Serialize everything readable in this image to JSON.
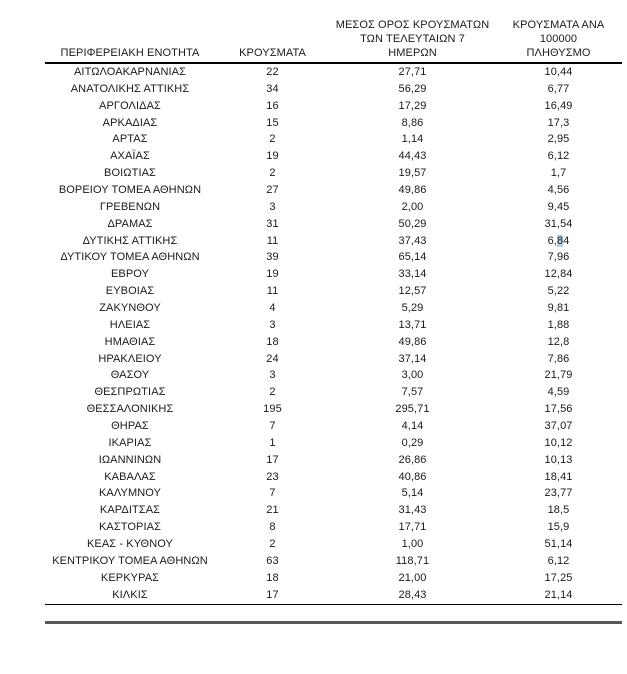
{
  "page": {
    "background": "#ffffff"
  },
  "table": {
    "columns": [
      {
        "id": "region",
        "lines": [
          "ΠΕΡΙΦΕΡΕΙΑΚΗ ΕΝΟΤΗΤΑ"
        ]
      },
      {
        "id": "cases",
        "lines": [
          "ΚΡΟΥΣΜΑΤΑ"
        ]
      },
      {
        "id": "avg7",
        "lines": [
          "ΜΕΣΟΣ ΟΡΟΣ ΚΡΟΥΣΜΑΤΩΝ",
          "ΤΩΝ ΤΕΛΕΥΤΑΙΩΝ 7",
          "ΗΜΕΡΩΝ"
        ]
      },
      {
        "id": "per100k",
        "lines": [
          "ΚΡΟΥΣΜΑΤΑ ΑΝΑ 100000",
          "ΠΛΗΘΥΣΜΟ"
        ]
      }
    ],
    "rows": [
      {
        "region": "ΑΙΤΩΛΟΑΚΑΡΝΑΝΙΑΣ",
        "cases": "22",
        "avg7": "27,71",
        "per100k": "10,44"
      },
      {
        "region": "ΑΝΑΤΟΛΙΚΗΣ ΑΤΤΙΚΗΣ",
        "cases": "34",
        "avg7": "56,29",
        "per100k": "6,77"
      },
      {
        "region": "ΑΡΓΟΛΙΔΑΣ",
        "cases": "16",
        "avg7": "17,29",
        "per100k": "16,49"
      },
      {
        "region": "ΑΡΚΑΔΙΑΣ",
        "cases": "15",
        "avg7": "8,86",
        "per100k": "17,3"
      },
      {
        "region": "ΑΡΤΑΣ",
        "cases": "2",
        "avg7": "1,14",
        "per100k": "2,95"
      },
      {
        "region": "ΑΧΑΪΑΣ",
        "cases": "19",
        "avg7": "44,43",
        "per100k": "6,12"
      },
      {
        "region": "ΒΟΙΩΤΙΑΣ",
        "cases": "2",
        "avg7": "19,57",
        "per100k": "1,7"
      },
      {
        "region": "ΒΟΡΕΙΟΥ ΤΟΜΕΑ ΑΘΗΝΩΝ",
        "cases": "27",
        "avg7": "49,86",
        "per100k": "4,56"
      },
      {
        "region": "ΓΡΕΒΕΝΩΝ",
        "cases": "3",
        "avg7": "2,00",
        "per100k": "9,45"
      },
      {
        "region": "ΔΡΑΜΑΣ",
        "cases": "31",
        "avg7": "50,29",
        "per100k": "31,54"
      },
      {
        "region": "ΔΥΤΙΚΗΣ ΑΤΤΙΚΗΣ",
        "cases": "11",
        "avg7": "37,43",
        "per100k": "6,84"
      },
      {
        "region": "ΔΥΤΙΚΟΥ ΤΟΜΕΑ ΑΘΗΝΩΝ",
        "cases": "39",
        "avg7": "65,14",
        "per100k": "7,96"
      },
      {
        "region": "ΕΒΡΟΥ",
        "cases": "19",
        "avg7": "33,14",
        "per100k": "12,84"
      },
      {
        "region": "ΕΥΒΟΙΑΣ",
        "cases": "11",
        "avg7": "12,57",
        "per100k": "5,22"
      },
      {
        "region": "ΖΑΚΥΝΘΟΥ",
        "cases": "4",
        "avg7": "5,29",
        "per100k": "9,81"
      },
      {
        "region": "ΗΛΕΙΑΣ",
        "cases": "3",
        "avg7": "13,71",
        "per100k": "1,88"
      },
      {
        "region": "ΗΜΑΘΙΑΣ",
        "cases": "18",
        "avg7": "49,86",
        "per100k": "12,8"
      },
      {
        "region": "ΗΡΑΚΛΕΙΟΥ",
        "cases": "24",
        "avg7": "37,14",
        "per100k": "7,86"
      },
      {
        "region": "ΘΑΣΟΥ",
        "cases": "3",
        "avg7": "3,00",
        "per100k": "21,79"
      },
      {
        "region": "ΘΕΣΠΡΩΤΙΑΣ",
        "cases": "2",
        "avg7": "7,57",
        "per100k": "4,59"
      },
      {
        "region": "ΘΕΣΣΑΛΟΝΙΚΗΣ",
        "cases": "195",
        "avg7": "295,71",
        "per100k": "17,56"
      },
      {
        "region": "ΘΗΡΑΣ",
        "cases": "7",
        "avg7": "4,14",
        "per100k": "37,07"
      },
      {
        "region": "ΙΚΑΡΙΑΣ",
        "cases": "1",
        "avg7": "0,29",
        "per100k": "10,12"
      },
      {
        "region": "ΙΩΑΝΝΙΝΩΝ",
        "cases": "17",
        "avg7": "26,86",
        "per100k": "10,13"
      },
      {
        "region": "ΚΑΒΑΛΑΣ",
        "cases": "23",
        "avg7": "40,86",
        "per100k": "18,41"
      },
      {
        "region": "ΚΑΛΥΜΝΟΥ",
        "cases": "7",
        "avg7": "5,14",
        "per100k": "23,77"
      },
      {
        "region": "ΚΑΡΔΙΤΣΑΣ",
        "cases": "21",
        "avg7": "31,43",
        "per100k": "18,5"
      },
      {
        "region": "ΚΑΣΤΟΡΙΑΣ",
        "cases": "8",
        "avg7": "17,71",
        "per100k": "15,9"
      },
      {
        "region": "ΚΕΑΣ - ΚΥΘΝΟΥ",
        "cases": "2",
        "avg7": "1,00",
        "per100k": "51,14"
      },
      {
        "region": "ΚΕΝΤΡΙΚΟΥ ΤΟΜΕΑ ΑΘΗΝΩΝ",
        "cases": "63",
        "avg7": "118,71",
        "per100k": "6,12"
      },
      {
        "region": "ΚΕΡΚΥΡΑΣ",
        "cases": "18",
        "avg7": "21,00",
        "per100k": "17,25"
      },
      {
        "region": "ΚΙΛΚΙΣ",
        "cases": "17",
        "avg7": "28,43",
        "per100k": "21,14"
      }
    ],
    "selection": {
      "row_index": 10,
      "column": "per100k",
      "prefix": "6,",
      "selected": "8",
      "suffix": "4",
      "color": "#b7d2e8"
    },
    "styles": {
      "rule_color": "#000000",
      "thick_rule_color": "#58595b",
      "text_color": "#1a1a1a"
    }
  }
}
